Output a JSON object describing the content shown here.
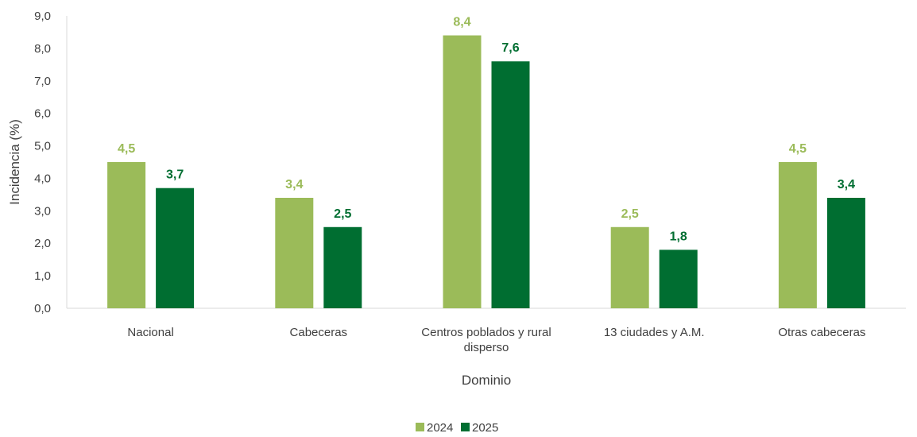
{
  "chart_data": {
    "type": "bar",
    "categories": [
      [
        "Nacional"
      ],
      [
        "Cabeceras"
      ],
      [
        "Centros poblados y rural",
        "disperso"
      ],
      [
        "13 ciudades y A.M."
      ],
      [
        "Otras cabeceras"
      ]
    ],
    "series": [
      {
        "name": "2024",
        "color": "#9bbb59",
        "values": [
          4.5,
          3.4,
          8.4,
          2.5,
          4.5
        ],
        "labels": [
          "4,5",
          "3,4",
          "8,4",
          "2,5",
          "4,5"
        ]
      },
      {
        "name": "2025",
        "color": "#006e31",
        "values": [
          3.7,
          2.5,
          7.6,
          1.8,
          3.4
        ],
        "labels": [
          "3,7",
          "2,5",
          "7,6",
          "1,8",
          "3,4"
        ]
      }
    ],
    "xlabel": "Dominio",
    "ylabel": "Incidencia (%)",
    "ylim": [
      0,
      9
    ],
    "yticks": [
      "0,0",
      "1,0",
      "2,0",
      "3,0",
      "4,0",
      "5,0",
      "6,0",
      "7,0",
      "8,0",
      "9,0"
    ],
    "grid": false,
    "legend": "bottom"
  }
}
